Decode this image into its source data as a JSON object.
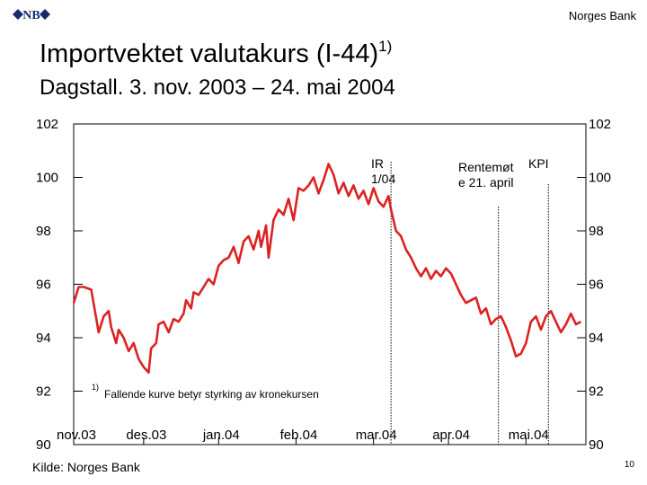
{
  "header": {
    "bank_name": "Norges Bank",
    "logo_text": "NB",
    "title": "Importvektet valutakurs (I-44)",
    "title_sup": "1)",
    "subtitle": "Dagstall. 3. nov. 2003 – 24. mai 2004"
  },
  "footer": {
    "source": "Kilde: Norges Bank",
    "page_number": "10"
  },
  "colors": {
    "line": "#dd2222",
    "axis": "#000000",
    "vline": "#000000"
  },
  "chart_data": {
    "type": "line",
    "ylim": [
      90,
      102
    ],
    "y_ticks": [
      "90",
      "92",
      "94",
      "96",
      "98",
      "100",
      "102"
    ],
    "x_ticks": [
      "nov.03",
      "des.03",
      "jan.04",
      "feb.04",
      "mar.04",
      "apr.04",
      "mai.04"
    ],
    "grid": false,
    "footnote_marker": "1)",
    "footnote": "Fallende kurve betyr styrking av kronekursen",
    "events": [
      {
        "label": [
          "IR",
          "1/04"
        ],
        "x": 127
      },
      {
        "label": [
          "Rentemøt",
          "e 21. april"
        ],
        "x": 170
      },
      {
        "label": [
          "KPI"
        ],
        "x": 190
      }
    ],
    "series": [
      {
        "x": [
          0,
          2,
          4,
          7,
          10,
          12,
          14,
          15,
          17,
          18,
          20,
          22,
          24,
          26,
          28,
          30,
          31,
          33,
          34,
          36,
          38,
          40,
          42,
          44,
          45,
          47,
          48,
          50,
          52,
          54,
          56,
          58,
          60,
          62,
          64,
          66,
          68,
          70,
          72,
          74,
          75,
          77,
          78,
          80,
          82,
          84,
          86,
          88,
          90,
          92,
          94,
          96,
          98,
          100,
          102,
          104,
          106,
          108,
          110,
          112,
          114,
          116,
          118,
          120,
          122,
          124,
          126,
          127,
          129,
          131,
          133,
          135,
          137,
          139,
          141,
          143,
          145,
          147,
          149,
          151,
          153,
          155,
          157,
          159,
          161,
          163,
          165,
          167,
          169,
          171,
          173,
          175,
          177,
          179,
          181,
          183,
          185,
          187,
          189,
          191,
          193,
          195,
          197,
          199,
          201,
          203
        ],
        "values": [
          95.3,
          95.9,
          95.9,
          95.8,
          94.2,
          94.8,
          95.0,
          94.4,
          93.8,
          94.3,
          94.0,
          93.5,
          93.8,
          93.2,
          92.9,
          92.7,
          93.6,
          93.8,
          94.5,
          94.6,
          94.2,
          94.7,
          94.6,
          94.9,
          95.4,
          95.1,
          95.7,
          95.6,
          95.9,
          96.2,
          96.0,
          96.7,
          96.9,
          97.0,
          97.4,
          96.8,
          97.6,
          97.8,
          97.3,
          98.0,
          97.4,
          98.2,
          97.0,
          98.4,
          98.8,
          98.6,
          99.2,
          98.4,
          99.6,
          99.5,
          99.7,
          100.0,
          99.4,
          99.9,
          100.5,
          100.1,
          99.4,
          99.8,
          99.3,
          99.7,
          99.2,
          99.5,
          99.0,
          99.6,
          99.1,
          98.9,
          99.3,
          98.8,
          98.0,
          97.8,
          97.3,
          97.0,
          96.6,
          96.3,
          96.6,
          96.2,
          96.5,
          96.3,
          96.6,
          96.4,
          96.0,
          95.6,
          95.3,
          95.4,
          95.5,
          94.9,
          95.1,
          94.5,
          94.7,
          94.8,
          94.4,
          93.9,
          93.3,
          93.4,
          93.8,
          94.6,
          94.8,
          94.3,
          94.8,
          95.0,
          94.6,
          94.2,
          94.5,
          94.9,
          94.5,
          94.6
        ]
      }
    ]
  }
}
